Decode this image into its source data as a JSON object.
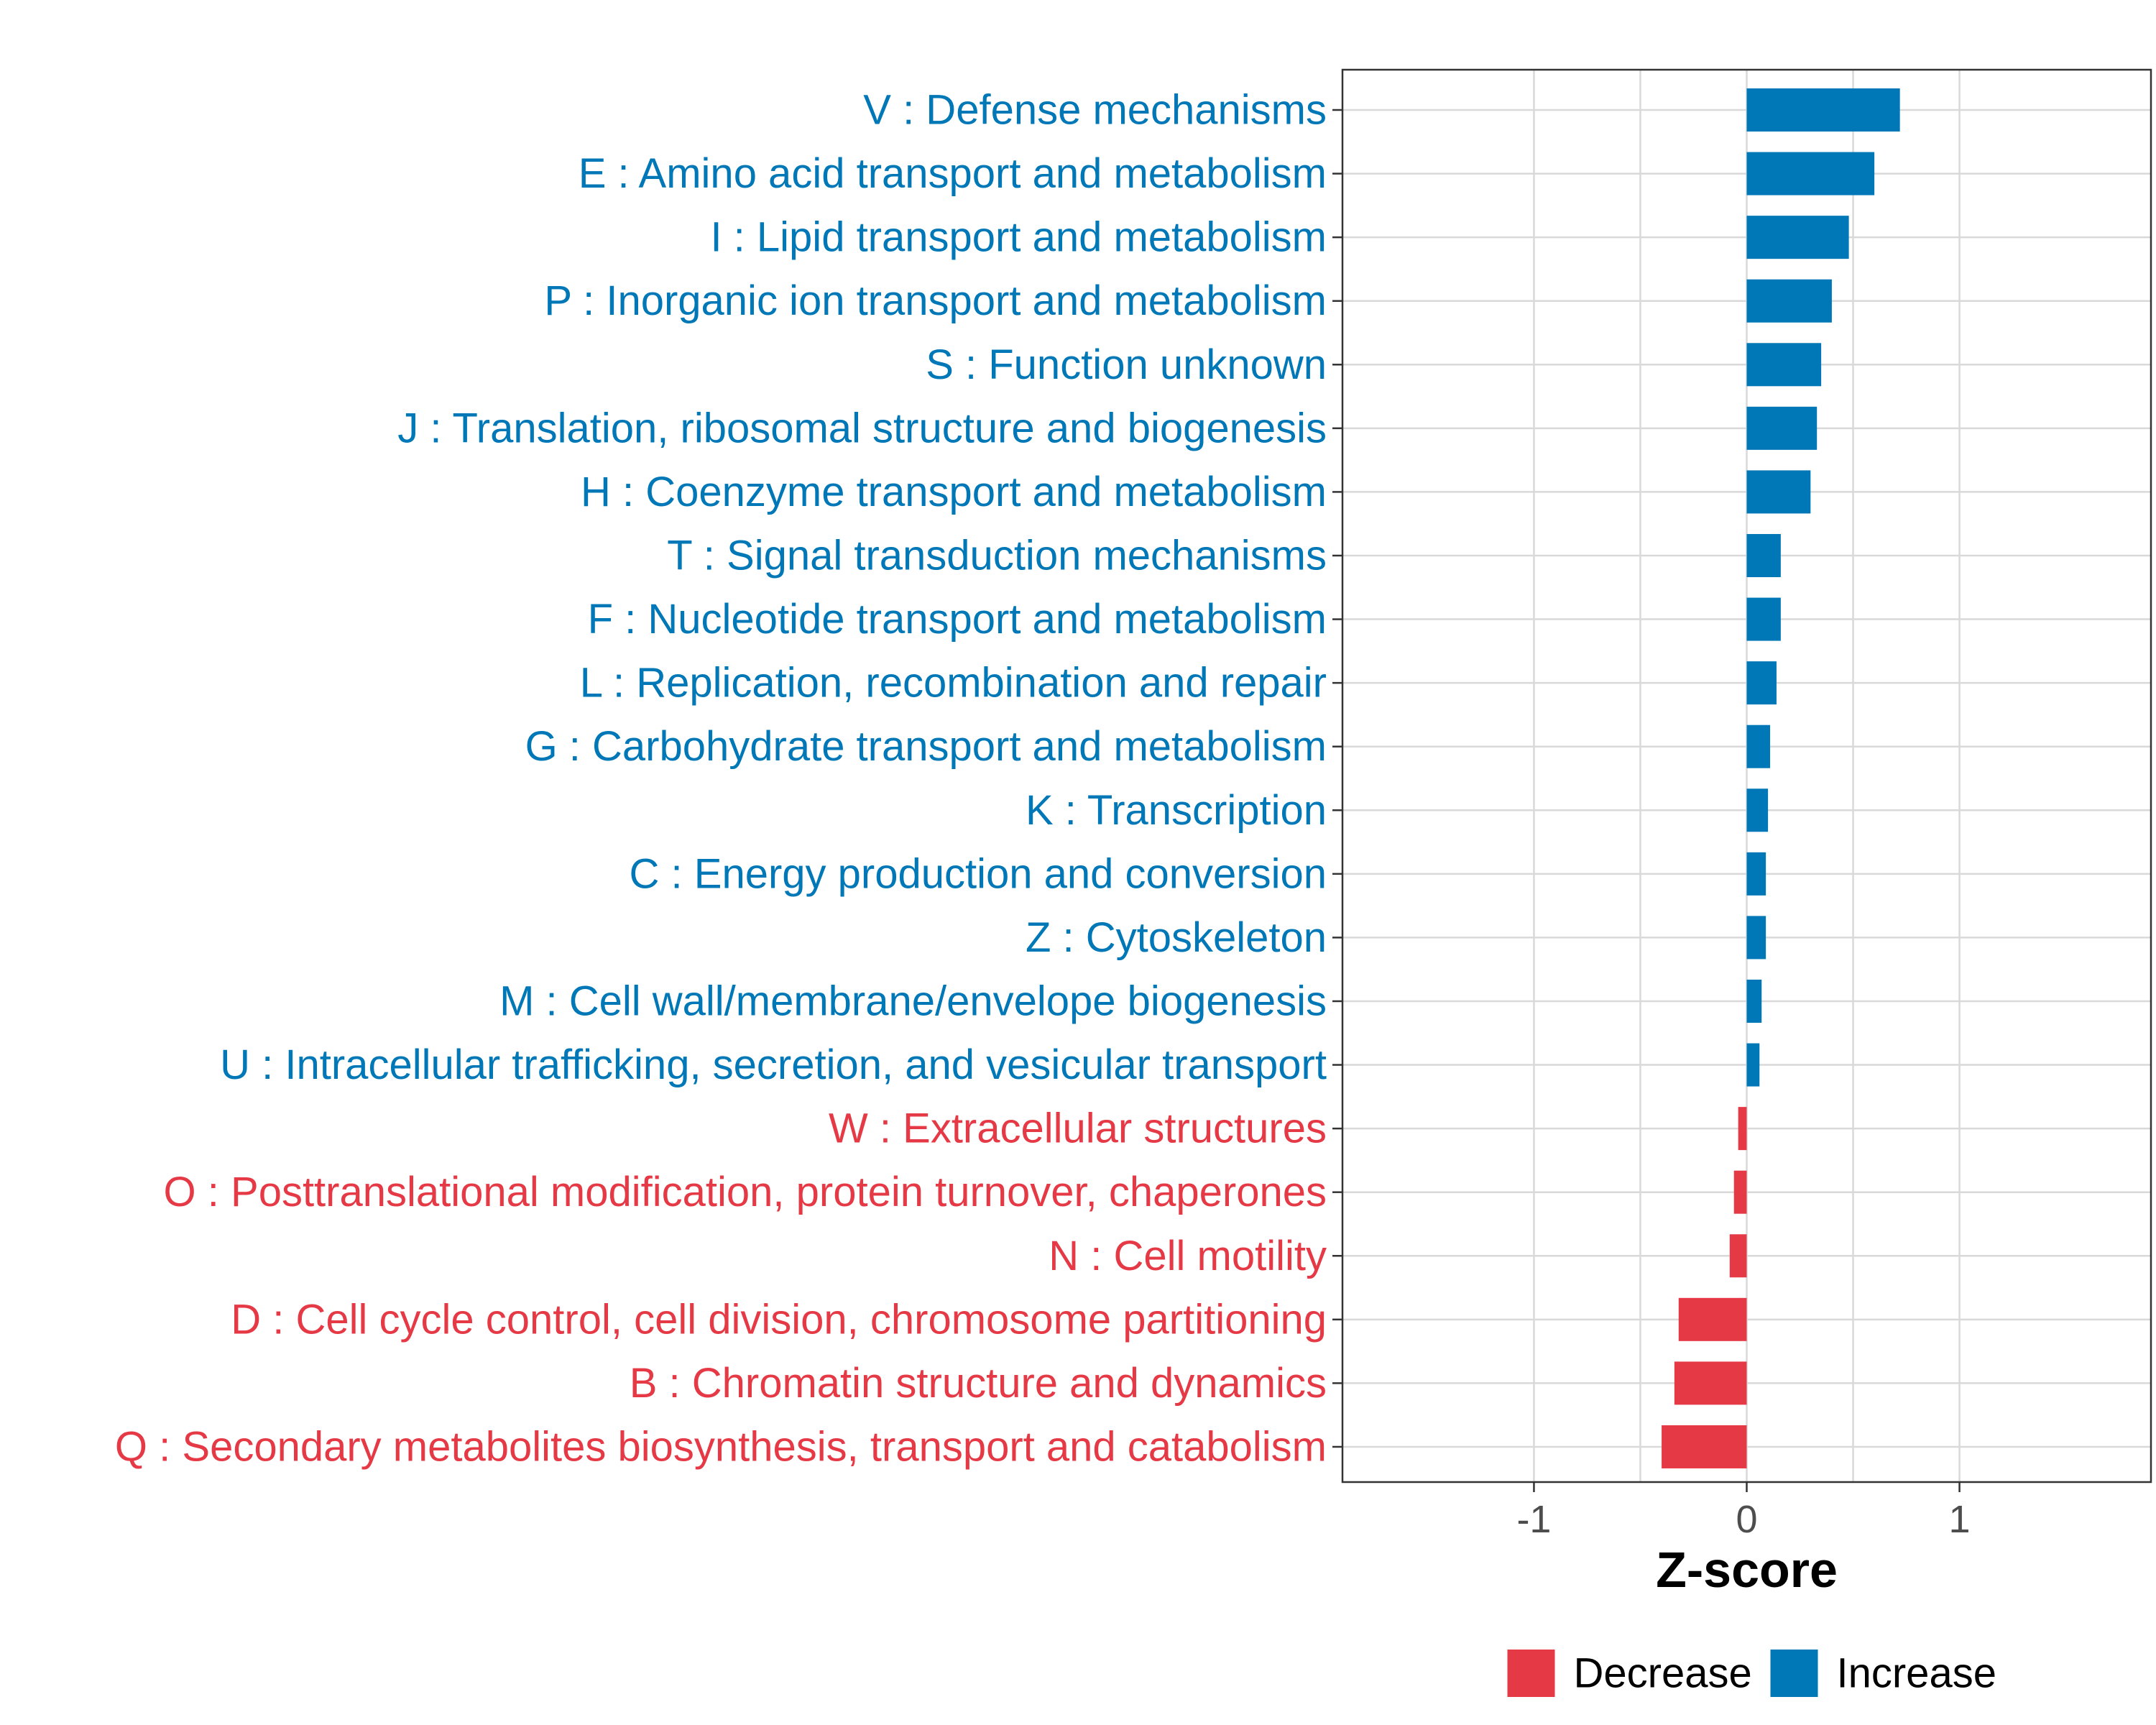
{
  "chart_data": {
    "type": "bar",
    "orientation": "horizontal",
    "title": "",
    "xlabel": "Z-score",
    "ylabel": "",
    "xlim": [
      -1.9,
      1.9
    ],
    "xticks": [
      {
        "value": -1,
        "label": "-1"
      },
      {
        "value": 0,
        "label": "0"
      },
      {
        "value": 1,
        "label": "1"
      }
    ],
    "grid": true,
    "legend_position": "bottom",
    "colors": {
      "Decrease": "#e63946",
      "Increase": "#0077b6"
    },
    "legend": [
      {
        "name": "Decrease",
        "color": "#e63946"
      },
      {
        "name": "Increase",
        "color": "#0077b6"
      }
    ],
    "categories": [
      {
        "label": "V : Defense mechanisms",
        "value": 0.72,
        "group": "Increase"
      },
      {
        "label": "E : Amino acid transport and metabolism",
        "value": 0.6,
        "group": "Increase"
      },
      {
        "label": "I : Lipid transport and metabolism",
        "value": 0.48,
        "group": "Increase"
      },
      {
        "label": "P : Inorganic ion transport and metabolism",
        "value": 0.4,
        "group": "Increase"
      },
      {
        "label": "S : Function unknown",
        "value": 0.35,
        "group": "Increase"
      },
      {
        "label": "J : Translation, ribosomal structure and biogenesis",
        "value": 0.33,
        "group": "Increase"
      },
      {
        "label": "H : Coenzyme transport and metabolism",
        "value": 0.3,
        "group": "Increase"
      },
      {
        "label": "T : Signal transduction mechanisms",
        "value": 0.16,
        "group": "Increase"
      },
      {
        "label": "F : Nucleotide transport and metabolism",
        "value": 0.16,
        "group": "Increase"
      },
      {
        "label": "L : Replication, recombination and repair",
        "value": 0.14,
        "group": "Increase"
      },
      {
        "label": "G : Carbohydrate transport and metabolism",
        "value": 0.11,
        "group": "Increase"
      },
      {
        "label": "K : Transcription",
        "value": 0.1,
        "group": "Increase"
      },
      {
        "label": "C : Energy production and conversion",
        "value": 0.09,
        "group": "Increase"
      },
      {
        "label": "Z : Cytoskeleton",
        "value": 0.09,
        "group": "Increase"
      },
      {
        "label": "M : Cell wall/membrane/envelope biogenesis",
        "value": 0.07,
        "group": "Increase"
      },
      {
        "label": "U : Intracellular trafficking, secretion, and vesicular transport",
        "value": 0.06,
        "group": "Increase"
      },
      {
        "label": "W : Extracellular structures",
        "value": -0.04,
        "group": "Decrease"
      },
      {
        "label": "O : Posttranslational modification, protein turnover, chaperones",
        "value": -0.06,
        "group": "Decrease"
      },
      {
        "label": "N : Cell motility",
        "value": -0.08,
        "group": "Decrease"
      },
      {
        "label": "D : Cell cycle control, cell division, chromosome partitioning",
        "value": -0.32,
        "group": "Decrease"
      },
      {
        "label": "B : Chromatin structure and dynamics",
        "value": -0.34,
        "group": "Decrease"
      },
      {
        "label": "Q : Secondary metabolites biosynthesis, transport and catabolism",
        "value": -0.4,
        "group": "Decrease"
      }
    ]
  }
}
